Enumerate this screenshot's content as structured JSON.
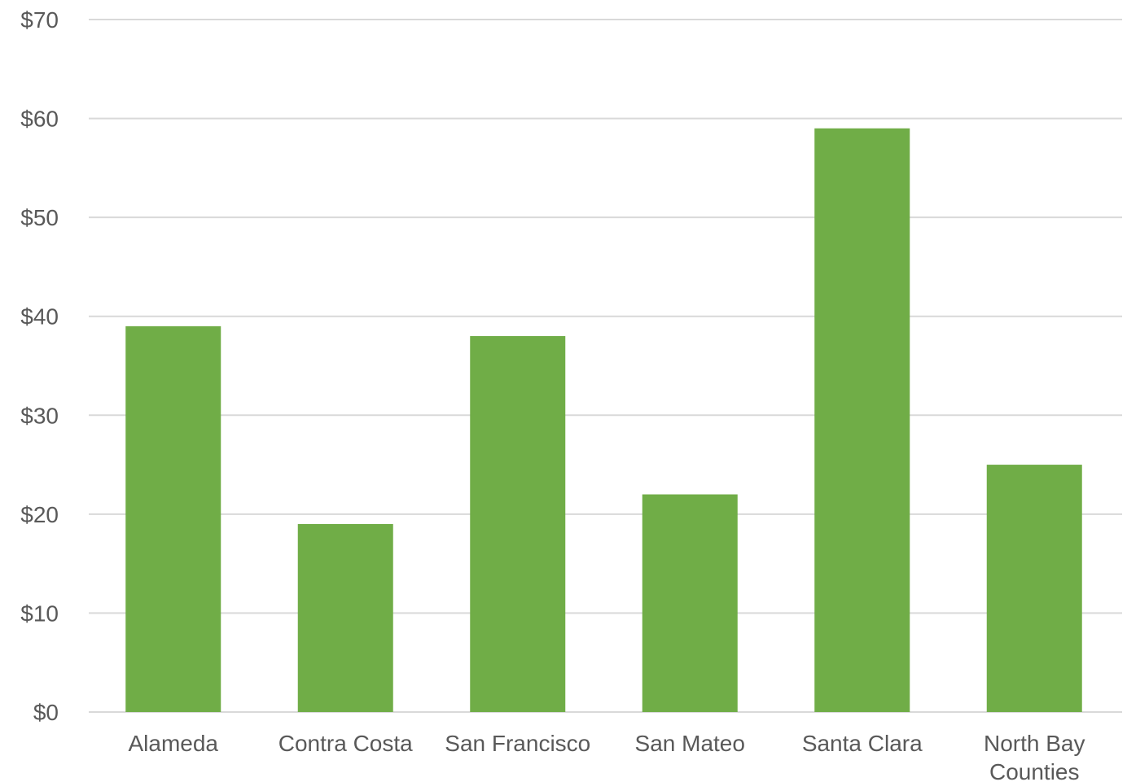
{
  "chart_data": {
    "type": "bar",
    "title": "",
    "xlabel": "",
    "ylabel": "",
    "categories": [
      [
        "Alameda"
      ],
      [
        "Contra Costa"
      ],
      [
        "San Francisco"
      ],
      [
        "San Mateo"
      ],
      [
        "Santa Clara"
      ],
      [
        "North Bay",
        "Counties"
      ]
    ],
    "values": [
      39,
      19,
      38,
      22,
      59,
      25
    ],
    "ylim": [
      0,
      70
    ],
    "yticks": [
      0,
      10,
      20,
      30,
      40,
      50,
      60,
      70
    ],
    "ytick_labels": [
      "$0",
      "$10",
      "$20",
      "$30",
      "$40",
      "$50",
      "$60",
      "$70"
    ],
    "grid": true,
    "legend": "none",
    "colors": {
      "bar": "#70ad47",
      "gridline": "#d9d9d9",
      "text": "#595959"
    }
  }
}
